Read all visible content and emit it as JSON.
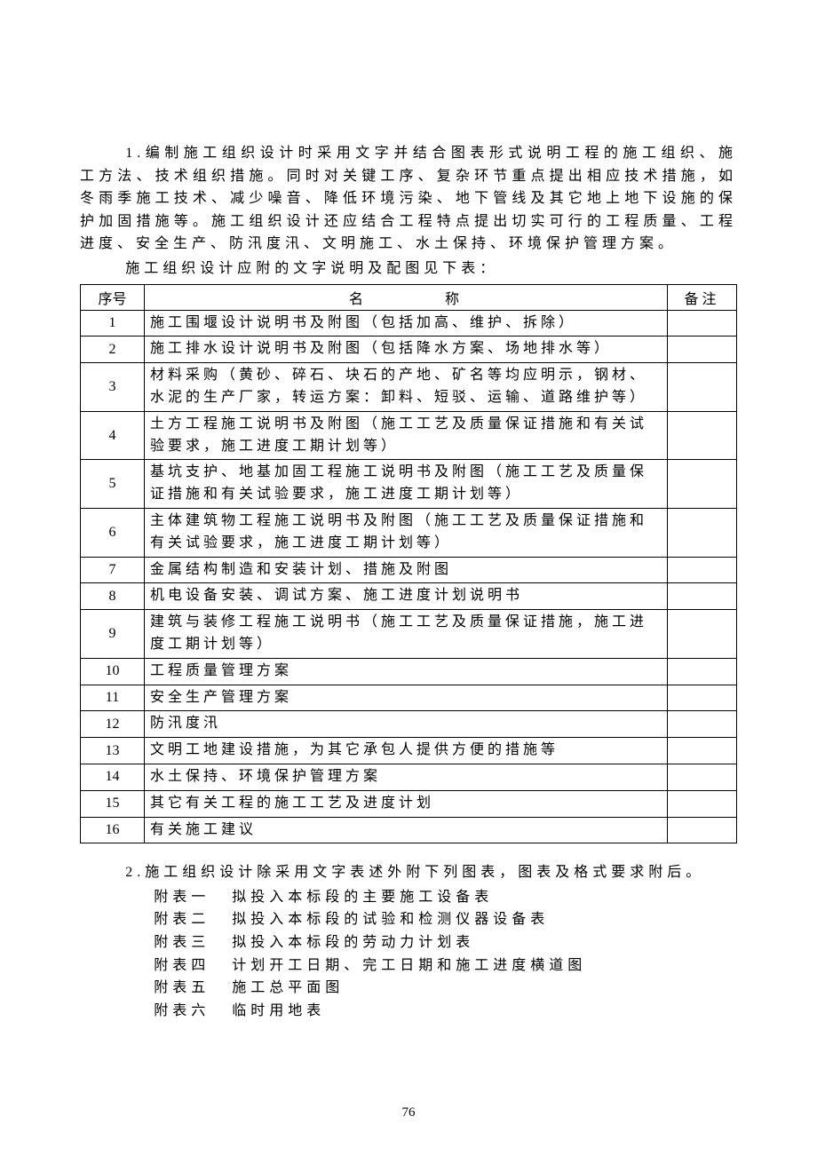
{
  "paragraph1": "1.编制施工组织设计时采用文字并结合图表形式说明工程的施工组织、施工方法、技术组织措施。同时对关键工序、复杂环节重点提出相应技术措施，如冬雨季施工技术、减少噪音、降低环境污染、地下管线及其它地上地下设施的保护加固措施等。施工组织设计还应结合工程特点提出切实可行的工程质量、工程进度、安全生产、防汛度汛、文明施工、水土保持、环境保护管理方案。",
  "subtext": "施工组织设计应附的文字说明及配图见下表：",
  "table": {
    "headers": {
      "seq": "序号",
      "name_left": "名",
      "name_right": "称",
      "note": "备注"
    },
    "rows": [
      {
        "seq": "1",
        "name": "施工围堰设计说明书及附图（包括加高、维护、拆除）",
        "note": ""
      },
      {
        "seq": "2",
        "name": "施工排水设计说明书及附图（包括降水方案、场地排水等）",
        "note": ""
      },
      {
        "seq": "3",
        "name": "材料采购（黄砂、碎石、块石的产地、矿名等均应明示，钢材、水泥的生产厂家，转运方案：卸料、短驳、运输、道路维护等）",
        "note": ""
      },
      {
        "seq": "4",
        "name": "土方工程施工说明书及附图（施工工艺及质量保证措施和有关试验要求，施工进度工期计划等）",
        "note": ""
      },
      {
        "seq": "5",
        "name": "基坑支护、地基加固工程施工说明书及附图（施工工艺及质量保证措施和有关试验要求，施工进度工期计划等）",
        "note": ""
      },
      {
        "seq": "6",
        "name": "主体建筑物工程施工说明书及附图（施工工艺及质量保证措施和有关试验要求，施工进度工期计划等）",
        "note": ""
      },
      {
        "seq": "7",
        "name": "金属结构制造和安装计划、措施及附图",
        "note": ""
      },
      {
        "seq": "8",
        "name": "机电设备安装、调试方案、施工进度计划说明书",
        "note": ""
      },
      {
        "seq": "9",
        "name": "建筑与装修工程施工说明书（施工工艺及质量保证措施，施工进度工期计划等）",
        "note": ""
      },
      {
        "seq": "10",
        "name": "工程质量管理方案",
        "note": ""
      },
      {
        "seq": "11",
        "name": "安全生产管理方案",
        "note": ""
      },
      {
        "seq": "12",
        "name": "防汛度汛",
        "note": ""
      },
      {
        "seq": "13",
        "name": "文明工地建设措施，为其它承包人提供方便的措施等",
        "note": ""
      },
      {
        "seq": "14",
        "name": "水土保持、环境保护管理方案",
        "note": ""
      },
      {
        "seq": "15",
        "name": "其它有关工程的施工工艺及进度计划",
        "note": ""
      },
      {
        "seq": "16",
        "name": "有关施工建议",
        "note": ""
      }
    ]
  },
  "paragraph2": "2.施工组织设计除采用文字表述外附下列图表，图表及格式要求附后。",
  "attachments": [
    {
      "label": "附表一",
      "desc": "拟投入本标段的主要施工设备表"
    },
    {
      "label": "附表二",
      "desc": "拟投入本标段的试验和检测仪器设备表"
    },
    {
      "label": "附表三",
      "desc": "拟投入本标段的劳动力计划表"
    },
    {
      "label": "附表四",
      "desc": "计划开工日期、完工日期和施工进度横道图"
    },
    {
      "label": "附表五",
      "desc": "施工总平面图"
    },
    {
      "label": "附表六",
      "desc": "临时用地表"
    }
  ],
  "pageNumber": "76",
  "styling": {
    "background_color": "#ffffff",
    "text_color": "#000000",
    "border_color": "#000000",
    "font_size_body": 16,
    "font_size_page": 15,
    "letter_spacing": 5,
    "line_height": 1.6,
    "font_family": "SimSun"
  }
}
